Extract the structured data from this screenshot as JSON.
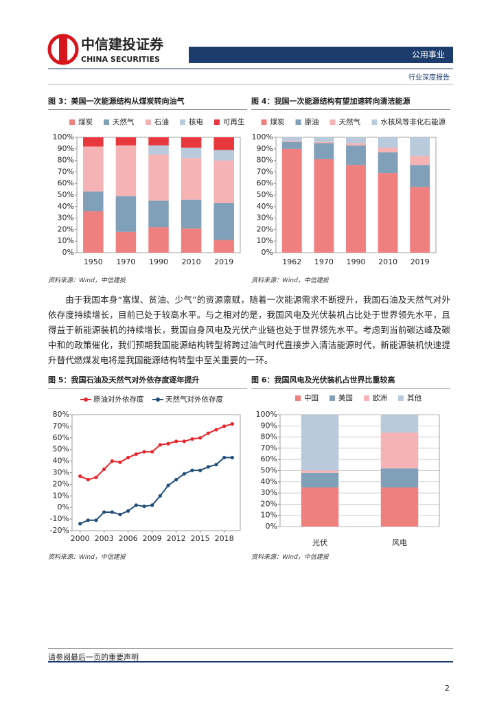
{
  "header": {
    "company_cn": "中信建投证券",
    "company_en": "CHINA SECURITIES",
    "sector": "公用事业",
    "report_type": "行业深度报告"
  },
  "chart_data": [
    {
      "type": "stacked-bar",
      "title": "图 3：美国一次能源结构从煤炭转向油气",
      "source": "资料来源：Wind，中信建投",
      "categories": [
        "1950",
        "1970",
        "1990",
        "2010",
        "2019"
      ],
      "series": [
        {
          "name": "煤炭",
          "color": "#f08080",
          "values": [
            36,
            18,
            22,
            21,
            11
          ]
        },
        {
          "name": "天然气",
          "color": "#7fa0b8",
          "values": [
            17,
            31,
            23,
            25,
            32
          ]
        },
        {
          "name": "石油",
          "color": "#f5b3b5",
          "values": [
            39,
            44,
            40,
            36,
            37
          ]
        },
        {
          "name": "核电",
          "color": "#b8cadb",
          "values": [
            0,
            0,
            8,
            9,
            9
          ]
        },
        {
          "name": "可再生",
          "color": "#e8383d",
          "values": [
            8,
            7,
            7,
            9,
            11
          ]
        }
      ],
      "ylim": [
        0,
        100
      ],
      "yticks": [
        {
          "value": 0,
          "label": "0%"
        },
        {
          "value": 10,
          "label": "10%"
        },
        {
          "value": 20,
          "label": "20%"
        },
        {
          "value": 30,
          "label": "30%"
        },
        {
          "value": 40,
          "label": "40%"
        },
        {
          "value": 50,
          "label": "50%"
        },
        {
          "value": 60,
          "label": "60%"
        },
        {
          "value": 70,
          "label": "70%"
        },
        {
          "value": 80,
          "label": "80%"
        },
        {
          "value": 90,
          "label": "90%"
        },
        {
          "value": 100,
          "label": "100%"
        }
      ],
      "grid": false
    },
    {
      "type": "stacked-bar",
      "title": "图 4：我国一次能源结构有望加速转向清洁能源",
      "source": "资料来源：Wind，中信建投",
      "categories": [
        "1962",
        "1970",
        "1990",
        "2010",
        "2019"
      ],
      "series": [
        {
          "name": "煤炭",
          "color": "#f08080",
          "values": [
            90,
            81,
            76,
            69,
            57
          ]
        },
        {
          "name": "原油",
          "color": "#7fa0b8",
          "values": [
            6,
            14,
            17,
            18,
            19
          ]
        },
        {
          "name": "天然气",
          "color": "#f5b3b5",
          "values": [
            1,
            1,
            2,
            4,
            8
          ]
        },
        {
          "name": "水核风等非化石能源",
          "color": "#b8cadb",
          "values": [
            3,
            4,
            5,
            9,
            16
          ]
        }
      ],
      "ylim": [
        0,
        100
      ],
      "yticks": [
        {
          "value": 0,
          "label": "0%"
        },
        {
          "value": 10,
          "label": "10%"
        },
        {
          "value": 20,
          "label": "20%"
        },
        {
          "value": 30,
          "label": "30%"
        },
        {
          "value": 40,
          "label": "40%"
        },
        {
          "value": 50,
          "label": "50%"
        },
        {
          "value": 60,
          "label": "60%"
        },
        {
          "value": 70,
          "label": "70%"
        },
        {
          "value": 80,
          "label": "80%"
        },
        {
          "value": 90,
          "label": "90%"
        },
        {
          "value": 100,
          "label": "100%"
        }
      ],
      "grid": false
    },
    {
      "type": "line",
      "title": "图 5：我国石油及天然气对外依存度逐年提升",
      "source": "资料来源：Wind，中信建投",
      "x": [
        2000,
        2001,
        2002,
        2003,
        2004,
        2005,
        2006,
        2007,
        2008,
        2009,
        2010,
        2011,
        2012,
        2013,
        2014,
        2015,
        2016,
        2017,
        2018,
        2019
      ],
      "series": [
        {
          "name": "原油对外依存度",
          "color": "#e8262b",
          "values": [
            27,
            24,
            26,
            33,
            40,
            39,
            43,
            46,
            48,
            48,
            54,
            55,
            57,
            57,
            59,
            60,
            64,
            67,
            70,
            72
          ]
        },
        {
          "name": "天然气对外依存度",
          "color": "#1f4e79",
          "values": [
            -14,
            -11,
            -11,
            -4,
            -4,
            -6,
            -3,
            2,
            1,
            2,
            10,
            19,
            24,
            29,
            32,
            32,
            35,
            37,
            43,
            43
          ]
        }
      ],
      "xlim": [
        1999,
        2020
      ],
      "xticks": [
        2000,
        2003,
        2006,
        2009,
        2012,
        2015,
        2018
      ],
      "ylim": [
        -20,
        80
      ],
      "yticks": [
        {
          "value": -20,
          "label": "-20%"
        },
        {
          "value": -10,
          "label": "-10%"
        },
        {
          "value": 0,
          "label": "0%"
        },
        {
          "value": 10,
          "label": "10%"
        },
        {
          "value": 20,
          "label": "20%"
        },
        {
          "value": 30,
          "label": "30%"
        },
        {
          "value": 40,
          "label": "40%"
        },
        {
          "value": 50,
          "label": "50%"
        },
        {
          "value": 60,
          "label": "60%"
        },
        {
          "value": 70,
          "label": "70%"
        },
        {
          "value": 80,
          "label": "80%"
        }
      ],
      "grid": false
    },
    {
      "type": "stacked-bar",
      "title": "图 6：我国风电及光伏装机占世界比重较高",
      "source": "资料来源：Wind，中信建投",
      "categories": [
        "光伏",
        "风电"
      ],
      "series": [
        {
          "name": "中国",
          "color": "#f08080",
          "values": [
            35,
            35
          ]
        },
        {
          "name": "美国",
          "color": "#7fa0b8",
          "values": [
            13,
            17
          ]
        },
        {
          "name": "欧洲",
          "color": "#f5b3b5",
          "values": [
            2,
            32
          ]
        },
        {
          "name": "其他",
          "color": "#b8cadb",
          "values": [
            50,
            16
          ]
        }
      ],
      "ylim": [
        0,
        100
      ],
      "yticks": [
        {
          "value": 0,
          "label": "0%"
        },
        {
          "value": 10,
          "label": "10%"
        },
        {
          "value": 20,
          "label": "20%"
        },
        {
          "value": 30,
          "label": "30%"
        },
        {
          "value": 40,
          "label": "40%"
        },
        {
          "value": 50,
          "label": "50%"
        },
        {
          "value": 60,
          "label": "60%"
        },
        {
          "value": 70,
          "label": "70%"
        },
        {
          "value": 80,
          "label": "80%"
        },
        {
          "value": 90,
          "label": "90%"
        },
        {
          "value": 100,
          "label": "100%"
        }
      ],
      "grid": true
    }
  ],
  "paragraph": "由于我国本身“富煤、贫油、少气”的资源禀赋，随着一次能源需求不断提升，我国石油及天然气对外依存度持续增长，目前已处于较高水平。与之相对的是，我国风电及光伏装机占比处于世界领先水平，且得益于新能源装机的持续增长，我国自身风电及光伏产业链也处于世界领先水平。考虑到当前碳达峰及碳中和的政策催化，我们预期我国能源结构转型将跨过油气时代直接步入清洁能源时代，新能源装机快速提升替代燃煤发电将是我国能源结构转型中至关重要的一环。",
  "footer": {
    "disclaimer": "请参阅最后一页的重要声明",
    "page": 2
  }
}
